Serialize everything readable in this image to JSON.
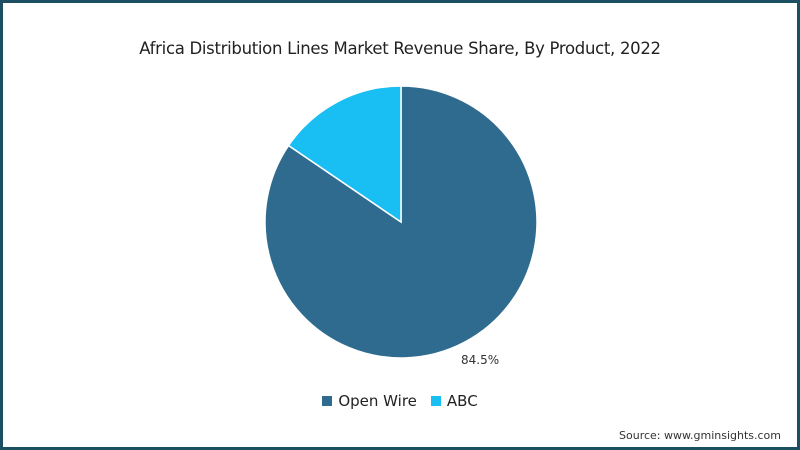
{
  "chart_data": {
    "type": "pie",
    "title": "Africa Distribution Lines Market Revenue Share, By Product, 2022",
    "categories": [
      "Open Wire",
      "ABC"
    ],
    "values": [
      84.5,
      15.5
    ],
    "colors": [
      "#2e6b8e",
      "#19bef2"
    ],
    "data_labels": [
      "84.5%",
      ""
    ],
    "legend_position": "bottom",
    "source": "Source: www.gminsights.com"
  },
  "legend": [
    {
      "label": "Open Wire",
      "color": "#2e6b8e"
    },
    {
      "label": "ABC",
      "color": "#19bef2"
    }
  ],
  "labels": {
    "open_wire_pct": "84.5%"
  },
  "source": "Source: www.gminsights.com",
  "colors": {
    "border": "#1d4f63"
  }
}
